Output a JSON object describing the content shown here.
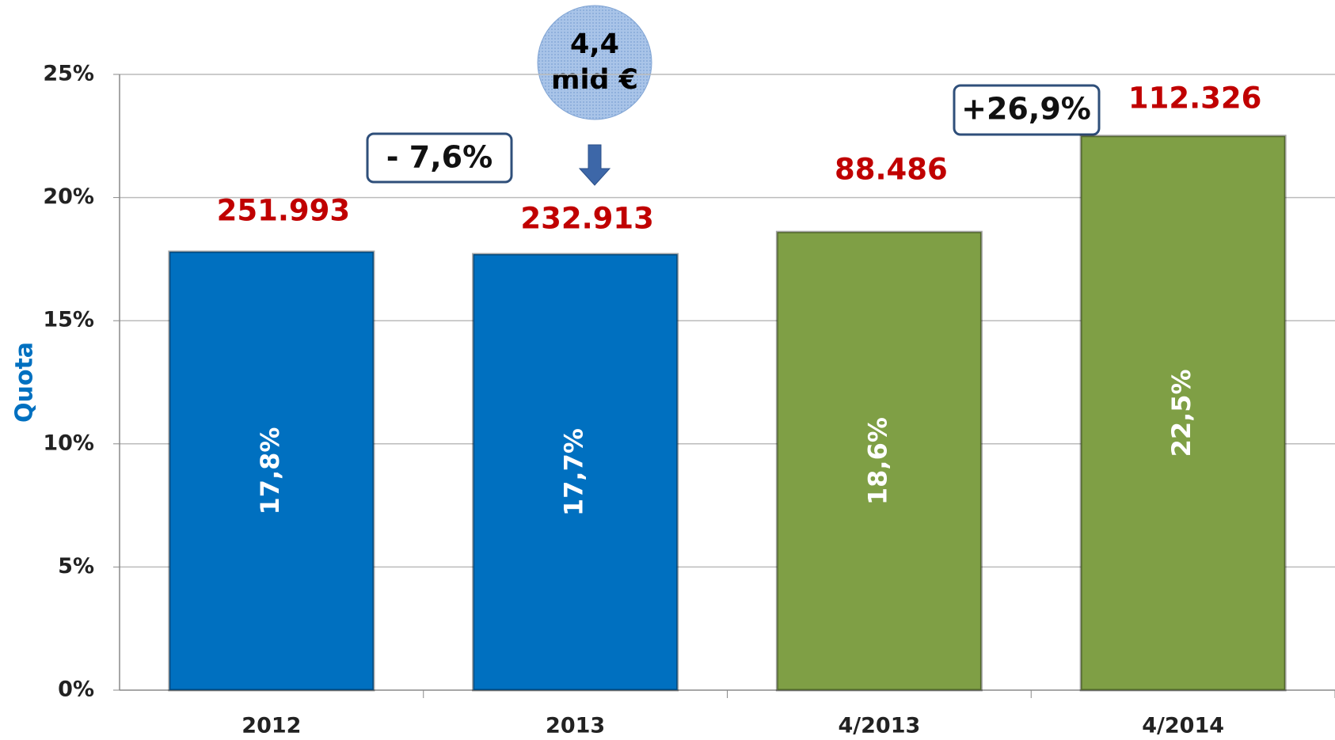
{
  "chart_data": {
    "type": "bar",
    "y_label": "Quota",
    "categories": [
      "2012",
      "2013",
      "4/2013",
      "4/2014"
    ],
    "values": [
      17.8,
      17.7,
      18.6,
      22.5
    ],
    "value_labels": [
      "17,8%",
      "17,7%",
      "18,6%",
      "22,5%"
    ],
    "colors": [
      "#0070c0",
      "#0070c0",
      "#7f9f45",
      "#7f9f45"
    ],
    "top_labels": [
      "251.993",
      "232.913",
      "88.486",
      "112.326"
    ],
    "annotations": [
      "- 7,6%",
      "+26,9%"
    ],
    "bubble": [
      "4,4",
      "mld €"
    ],
    "ylim": [
      0,
      25
    ],
    "yticks": [
      {
        "value": 0,
        "label": "0%"
      },
      {
        "value": 5,
        "label": "5%"
      },
      {
        "value": 10,
        "label": "10%"
      },
      {
        "value": 15,
        "label": "15%"
      },
      {
        "value": 20,
        "label": "20%"
      },
      {
        "value": 25,
        "label": "25%"
      }
    ],
    "grid": true
  }
}
